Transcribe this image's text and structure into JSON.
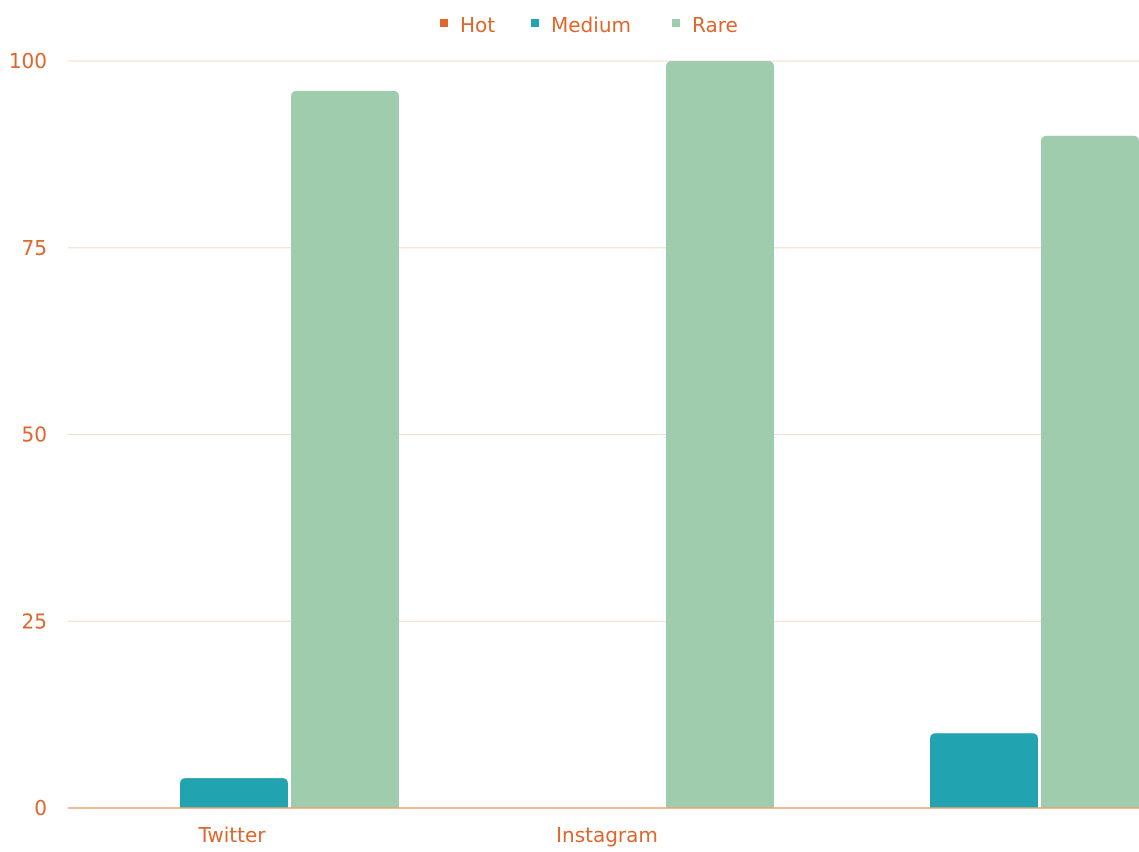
{
  "chart_data": {
    "type": "bar",
    "categories": [
      "Twitter",
      "Instagram",
      ""
    ],
    "series": [
      {
        "name": "Hot",
        "values": [
          0,
          0,
          0
        ]
      },
      {
        "name": "Medium",
        "values": [
          4,
          0,
          10
        ]
      },
      {
        "name": "Rare",
        "values": [
          96,
          100,
          90
        ]
      }
    ],
    "ylim": [
      0,
      100
    ],
    "yticks": [
      0,
      25,
      50,
      75,
      100
    ],
    "grid": true,
    "legend_position": "top-center"
  },
  "colors": {
    "Hot": "#e0662b",
    "Medium": "#21a3b0",
    "Rare": "#9fccac",
    "text": "#e0662b",
    "grid": "#f4dcc8",
    "axis": "#e7a27a"
  }
}
